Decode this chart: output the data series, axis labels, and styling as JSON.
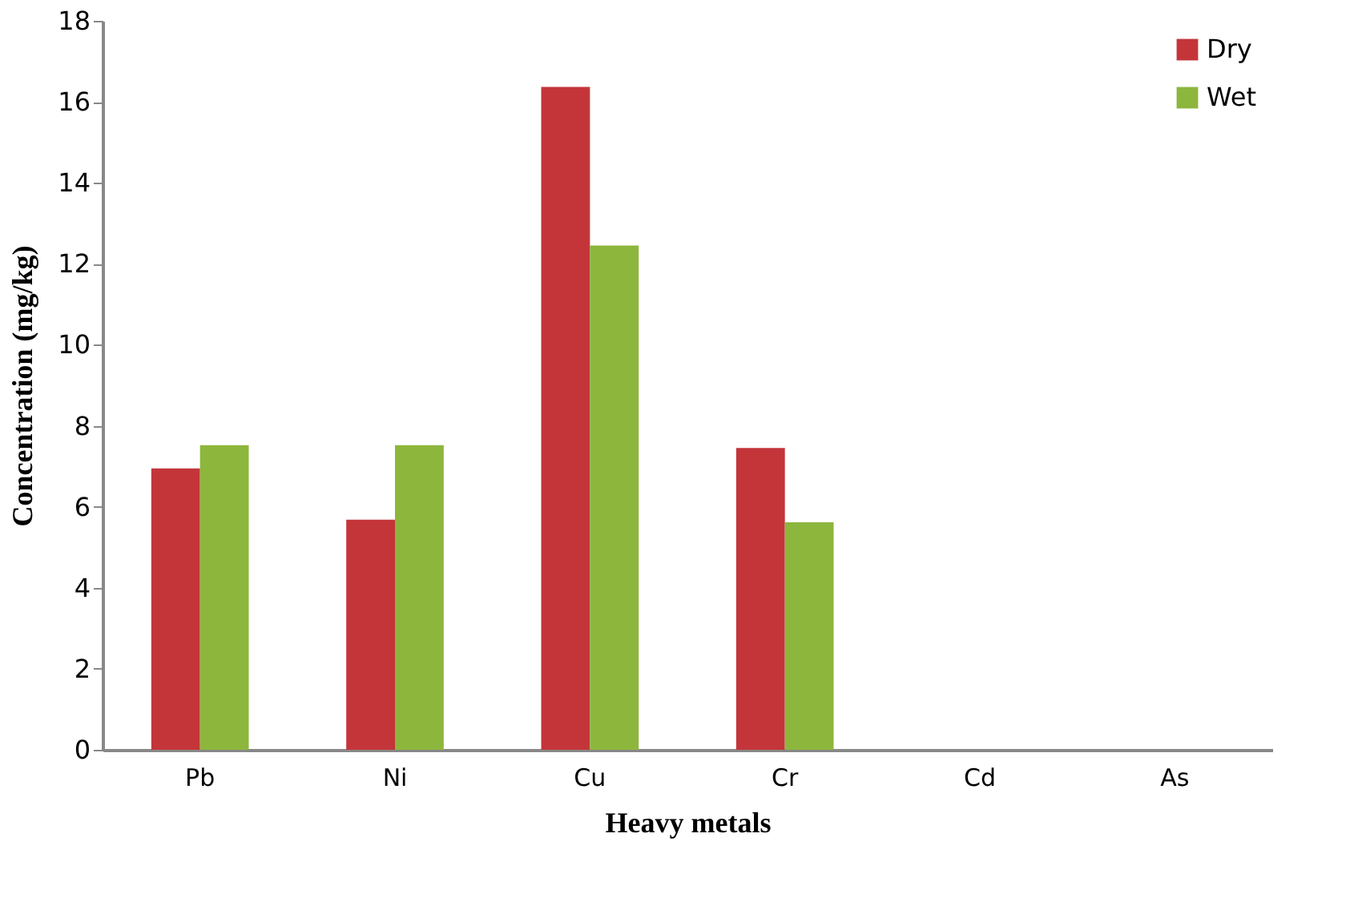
{
  "chart_data": {
    "type": "bar",
    "xlabel": "Heavy metals",
    "ylabel": "Concentration (mg/kg)",
    "categories": [
      "Pb",
      "Ni",
      "Cu",
      "Cr",
      "Cd",
      "As"
    ],
    "series": [
      {
        "name": "Dry",
        "color": "#c4353a",
        "values": [
          6.95,
          5.68,
          16.37,
          7.45,
          0,
          0
        ]
      },
      {
        "name": "Wet",
        "color": "#8db63c",
        "values": [
          7.52,
          7.52,
          12.45,
          5.62,
          0,
          0
        ]
      }
    ],
    "ylim": [
      0,
      18
    ],
    "yticks": [
      0,
      2,
      4,
      6,
      8,
      10,
      12,
      14,
      16,
      18
    ],
    "grid": false,
    "legend": "top right"
  }
}
